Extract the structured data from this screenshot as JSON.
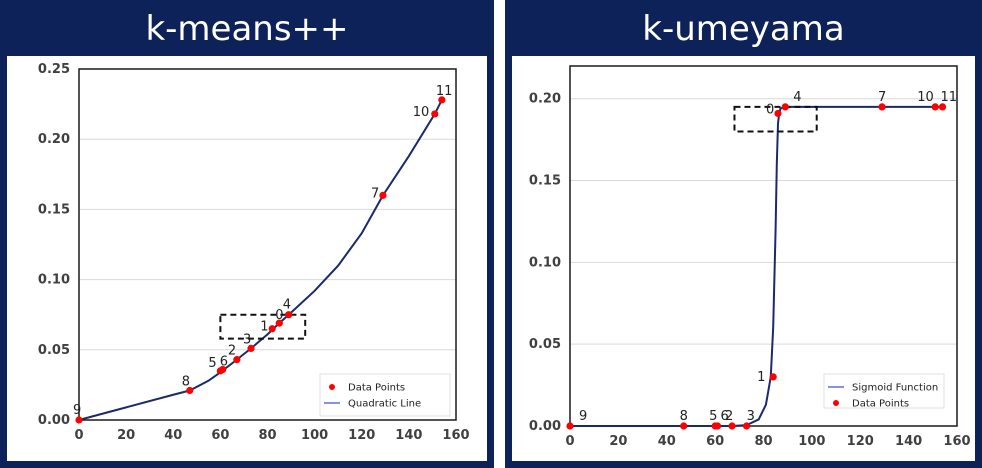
{
  "chart_data": [
    {
      "type": "scatter",
      "title": "k-means++",
      "xlim": [
        0,
        160
      ],
      "ylim": [
        0,
        0.25
      ],
      "x_ticks": [
        "0",
        "20",
        "40",
        "60",
        "80",
        "100",
        "120",
        "140",
        "160"
      ],
      "y_ticks": [
        "0.00",
        "0.05",
        "0.10",
        "0.15",
        "0.20",
        "0.25"
      ],
      "grid": "horizontal",
      "legend_position": "bottom-right",
      "series": [
        {
          "name": "Data Points",
          "kind": "scatter",
          "color": "#ff0000",
          "points": [
            {
              "label": "0",
              "x": 85,
              "y": 0.069
            },
            {
              "label": "1",
              "x": 82,
              "y": 0.065
            },
            {
              "label": "2",
              "x": 67,
              "y": 0.043
            },
            {
              "label": "3",
              "x": 73,
              "y": 0.051
            },
            {
              "label": "4",
              "x": 89,
              "y": 0.075
            },
            {
              "label": "5",
              "x": 60,
              "y": 0.035
            },
            {
              "label": "6",
              "x": 61,
              "y": 0.036
            },
            {
              "label": "7",
              "x": 129,
              "y": 0.16
            },
            {
              "label": "8",
              "x": 47,
              "y": 0.021
            },
            {
              "label": "9",
              "x": 0,
              "y": 0.0
            },
            {
              "label": "10",
              "x": 151,
              "y": 0.218
            },
            {
              "label": "11",
              "x": 154,
              "y": 0.228
            }
          ]
        },
        {
          "name": "Quadratic Line",
          "kind": "line",
          "color": "#1a2a6c",
          "x": [
            0,
            20,
            40,
            47,
            55,
            60,
            67,
            73,
            80,
            85,
            89,
            100,
            110,
            120,
            129,
            140,
            151,
            154
          ],
          "y": [
            0.0,
            0.009,
            0.018,
            0.021,
            0.028,
            0.034,
            0.043,
            0.051,
            0.061,
            0.069,
            0.075,
            0.092,
            0.11,
            0.133,
            0.16,
            0.188,
            0.218,
            0.228
          ]
        }
      ],
      "highlight_box": {
        "x0": 60,
        "x1": 96,
        "y0": 0.058,
        "y1": 0.075
      }
    },
    {
      "type": "scatter",
      "title": "k-umeyama",
      "xlim": [
        0,
        160
      ],
      "ylim": [
        0,
        0.22
      ],
      "x_ticks": [
        "0",
        "20",
        "40",
        "60",
        "80",
        "100",
        "120",
        "140",
        "160"
      ],
      "y_ticks": [
        "0.00",
        "0.05",
        "0.10",
        "0.15",
        "0.20"
      ],
      "grid": "horizontal",
      "legend_position": "bottom-right",
      "series": [
        {
          "name": "Sigmoid Function",
          "kind": "line",
          "color": "#1a2a6c",
          "x": [
            0,
            47,
            60,
            67,
            73,
            78,
            81,
            83,
            84,
            85,
            85.5,
            86,
            86.5,
            87,
            89,
            100,
            129,
            151,
            154
          ],
          "y": [
            0.0,
            0.0,
            0.0,
            0.0,
            0.0005,
            0.004,
            0.013,
            0.03,
            0.06,
            0.12,
            0.16,
            0.185,
            0.191,
            0.194,
            0.195,
            0.195,
            0.195,
            0.195,
            0.195
          ]
        },
        {
          "name": "Data Points",
          "kind": "scatter",
          "color": "#ff0000",
          "points": [
            {
              "label": "0",
              "x": 86,
              "y": 0.191
            },
            {
              "label": "1",
              "x": 84,
              "y": 0.03
            },
            {
              "label": "2",
              "x": 67,
              "y": 0.0
            },
            {
              "label": "3",
              "x": 73,
              "y": 0.0
            },
            {
              "label": "4",
              "x": 89,
              "y": 0.195
            },
            {
              "label": "5",
              "x": 60,
              "y": 0.0
            },
            {
              "label": "6",
              "x": 61,
              "y": 0.0
            },
            {
              "label": "7",
              "x": 129,
              "y": 0.195
            },
            {
              "label": "8",
              "x": 47,
              "y": 0.0
            },
            {
              "label": "9",
              "x": 0,
              "y": 0.0
            },
            {
              "label": "10",
              "x": 151,
              "y": 0.195
            },
            {
              "label": "11",
              "x": 154,
              "y": 0.195
            }
          ]
        }
      ],
      "highlight_box": {
        "x0": 68,
        "x1": 102,
        "y0": 0.18,
        "y1": 0.195
      }
    }
  ]
}
